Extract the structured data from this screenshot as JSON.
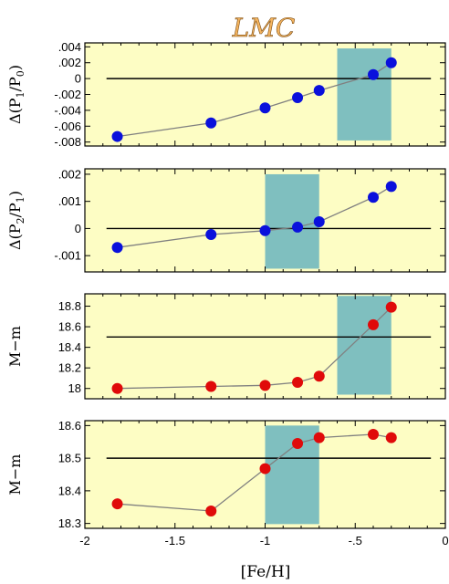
{
  "title": "LMC",
  "xlabel": "[Fe/H]",
  "colors": {
    "panel_bg": "#fdfdc4",
    "highlight": "#7fbfbf",
    "blue_marker": "#0a10dc",
    "red_marker": "#e00a0a",
    "connector": "#808080",
    "reference_line": "#000000"
  },
  "chart_data": [
    {
      "type": "scatter",
      "ylabel_main": "Δ(P",
      "ylabel_sub1": "1",
      "ylabel_mid": "/P",
      "ylabel_sub2": "0",
      "ylabel_end": ")",
      "xlim": [
        -2.0,
        0.0
      ],
      "ylim": [
        -0.0085,
        0.0045
      ],
      "y_ticks": [
        0.004,
        0.002,
        0,
        -0.002,
        -0.004,
        -0.006,
        -0.008
      ],
      "y_tick_labels": [
        ".004",
        ".002",
        "0",
        "-.002",
        "-.004",
        "-.006",
        "-.008"
      ],
      "reference_y": 0,
      "highlight": {
        "x": [
          -0.6,
          -0.3
        ],
        "y": [
          -0.0078,
          0.0038
        ]
      },
      "marker": "blue",
      "series": [
        {
          "x": [
            -1.82,
            -1.3,
            -1.0,
            -0.82,
            -0.7,
            -0.4,
            -0.3
          ],
          "y": [
            -0.0073,
            -0.0056,
            -0.0037,
            -0.0024,
            -0.0015,
            0.0005,
            0.002
          ]
        }
      ]
    },
    {
      "type": "scatter",
      "ylabel_main": "Δ(P",
      "ylabel_sub1": "2",
      "ylabel_mid": "/P",
      "ylabel_sub2": "1",
      "ylabel_end": ")",
      "xlim": [
        -2.0,
        0.0
      ],
      "ylim": [
        -0.0016,
        0.0022
      ],
      "y_ticks": [
        0.002,
        0.001,
        0,
        -0.001
      ],
      "y_tick_labels": [
        ".002",
        ".001",
        "0",
        "-.001"
      ],
      "reference_y": 0,
      "highlight": {
        "x": [
          -1.0,
          -0.7
        ],
        "y": [
          -0.00148,
          0.002
        ]
      },
      "marker": "blue",
      "series": [
        {
          "x": [
            -1.82,
            -1.3,
            -1.0,
            -0.82,
            -0.7,
            -0.4,
            -0.3
          ],
          "y": [
            -0.0007,
            -0.00022,
            -8e-05,
            5e-05,
            0.00025,
            0.00115,
            0.00155
          ]
        }
      ]
    },
    {
      "type": "scatter",
      "ylabel_main": "M−m",
      "xlim": [
        -2.0,
        0.0
      ],
      "ylim": [
        17.9,
        18.92
      ],
      "y_ticks": [
        18.8,
        18.6,
        18.4,
        18.2,
        18
      ],
      "y_tick_labels": [
        "18.8",
        "18.6",
        "18.4",
        "18.2",
        "18"
      ],
      "reference_y": 18.5,
      "highlight": {
        "x": [
          -0.6,
          -0.3
        ],
        "y": [
          17.94,
          18.9
        ]
      },
      "marker": "red",
      "series": [
        {
          "x": [
            -1.82,
            -1.3,
            -1.0,
            -0.82,
            -0.7,
            -0.4,
            -0.3
          ],
          "y": [
            18.0,
            18.02,
            18.03,
            18.06,
            18.12,
            18.62,
            18.79
          ]
        }
      ]
    },
    {
      "type": "scatter",
      "ylabel_main": "M−m",
      "xlim": [
        -2.0,
        0.0
      ],
      "ylim": [
        18.285,
        18.615
      ],
      "y_ticks": [
        18.6,
        18.5,
        18.4,
        18.3
      ],
      "y_tick_labels": [
        "18.6",
        "18.5",
        "18.4",
        "18.3"
      ],
      "reference_y": 18.5,
      "highlight": {
        "x": [
          -1.0,
          -0.7
        ],
        "y": [
          18.298,
          18.6
        ]
      },
      "marker": "red",
      "x_ticks": [
        -2,
        -1.5,
        -1,
        -0.5,
        0
      ],
      "x_tick_labels": [
        "-2",
        "-1.5",
        "-1",
        "-.5",
        "0"
      ],
      "series": [
        {
          "x": [
            -1.82,
            -1.3,
            -1.0,
            -0.82,
            -0.7,
            -0.4,
            -0.3
          ],
          "y": [
            18.36,
            18.338,
            18.468,
            18.545,
            18.563,
            18.573,
            18.563
          ]
        }
      ]
    }
  ]
}
